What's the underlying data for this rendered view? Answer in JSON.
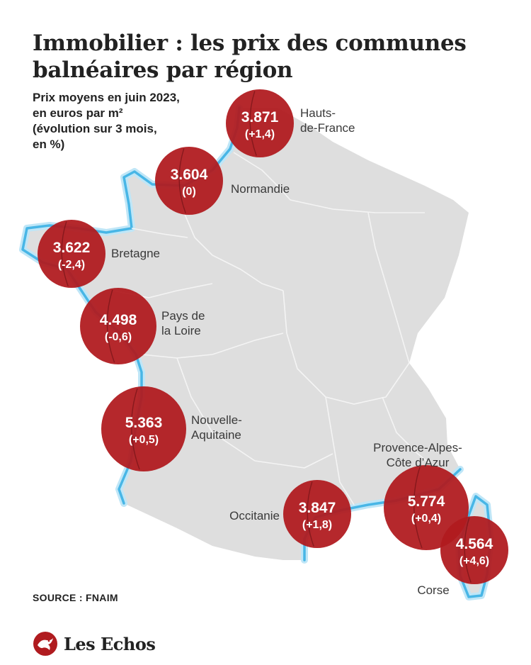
{
  "title": "Immobilier : les prix des communes balnéaires par région",
  "subtitle_lines": [
    "Prix moyens en juin 2023,",
    "en euros par m²",
    "(évolution sur 3 mois,",
    "en %)"
  ],
  "source": "SOURCE : FNAIM",
  "brand": "Les Echos",
  "colors": {
    "bubble": "#b01b1f",
    "land": "#dedede",
    "coast": "#48b6e6",
    "coast_glow": "#bfe6f7",
    "border": "#f4f4f4",
    "text": "#222222"
  },
  "icons": [
    "les-echos-logo-icon"
  ],
  "regions": [
    {
      "name_lines": [
        "Hauts-",
        "de-France"
      ],
      "price": "3.871",
      "change": "(+1,4)"
    },
    {
      "name_lines": [
        "Normandie"
      ],
      "price": "3.604",
      "change": "(0)"
    },
    {
      "name_lines": [
        "Bretagne"
      ],
      "price": "3.622",
      "change": "(-2,4)"
    },
    {
      "name_lines": [
        "Pays de",
        "la Loire"
      ],
      "price": "4.498",
      "change": "(-0,6)"
    },
    {
      "name_lines": [
        "Nouvelle-",
        "Aquitaine"
      ],
      "price": "5.363",
      "change": "(+0,5)"
    },
    {
      "name_lines": [
        "Occitanie"
      ],
      "price": "3.847",
      "change": "(+1,8)"
    },
    {
      "name_lines": [
        "Provence-Alpes-",
        "Côte d’Azur"
      ],
      "price": "5.774",
      "change": "(+0,4)"
    },
    {
      "name_lines": [
        "Corse"
      ],
      "price": "4.564",
      "change": "(+4,6)"
    }
  ]
}
